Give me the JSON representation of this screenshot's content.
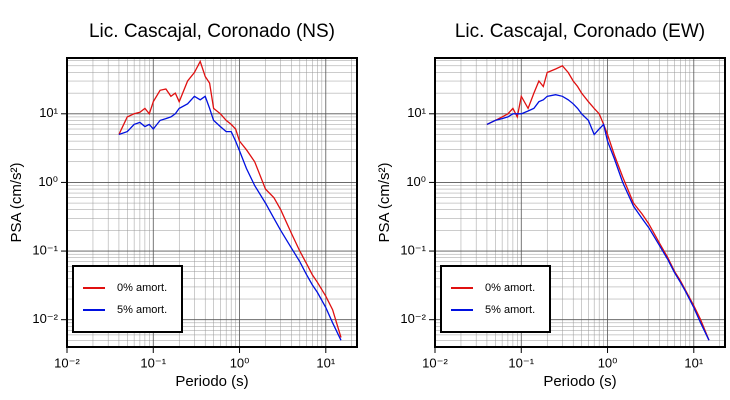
{
  "chart_data": [
    {
      "type": "line",
      "title": "Lic. Cascajal, Coronado (NS)",
      "x_label": "Periodo (s)",
      "y_label": "PSA (cm/s²)",
      "x": [
        0.04,
        0.05,
        0.06,
        0.07,
        0.08,
        0.09,
        0.1,
        0.12,
        0.14,
        0.16,
        0.18,
        0.2,
        0.25,
        0.3,
        0.35,
        0.4,
        0.45,
        0.5,
        0.6,
        0.7,
        0.8,
        0.9,
        1.0,
        1.2,
        1.5,
        2,
        2.5,
        3,
        4,
        5,
        6,
        7,
        8,
        10,
        12,
        15
      ],
      "series": [
        {
          "name": "0% amort.",
          "color": "#e01010",
          "values": [
            5,
            9,
            10,
            10.5,
            12,
            10,
            15,
            22,
            23,
            18,
            20,
            15,
            30,
            40,
            58,
            35,
            28,
            12,
            10,
            8,
            7,
            6,
            4,
            3,
            2,
            0.8,
            0.6,
            0.4,
            0.18,
            0.1,
            0.065,
            0.045,
            0.035,
            0.022,
            0.014,
            0.0055
          ]
        },
        {
          "name": "5% amort.",
          "color": "#0010e0",
          "values": [
            5,
            5.5,
            7,
            7.5,
            6.5,
            7,
            6,
            8,
            8.5,
            9,
            10,
            12,
            14,
            18,
            16,
            18,
            12,
            8,
            6.5,
            5.5,
            5.5,
            4,
            2.9,
            1.6,
            0.9,
            0.5,
            0.3,
            0.2,
            0.11,
            0.07,
            0.045,
            0.032,
            0.025,
            0.015,
            0.009,
            0.005
          ]
        }
      ],
      "xlog": true,
      "ylog": true,
      "grid": true,
      "minor_grid": true,
      "legend": "lower left",
      "xlim": [
        0.01,
        23
      ],
      "ylim": [
        0.004,
        65
      ],
      "xticks": [
        {
          "value": 0.01,
          "label": "10⁻²"
        },
        {
          "value": 0.1,
          "label": "10⁻¹"
        },
        {
          "value": 1,
          "label": "10⁰"
        },
        {
          "value": 10,
          "label": "10¹"
        }
      ],
      "yticks": [
        {
          "value": 0.01,
          "label": "10⁻²"
        },
        {
          "value": 0.1,
          "label": "10⁻¹"
        },
        {
          "value": 1,
          "label": "10⁰"
        },
        {
          "value": 10,
          "label": "10¹"
        }
      ]
    },
    {
      "type": "line",
      "title": "Lic. Cascajal, Coronado (EW)",
      "x_label": "Periodo (s)",
      "y_label": "PSA (cm/s²)",
      "x": [
        0.04,
        0.05,
        0.06,
        0.07,
        0.08,
        0.09,
        0.1,
        0.12,
        0.14,
        0.16,
        0.18,
        0.2,
        0.25,
        0.3,
        0.35,
        0.4,
        0.45,
        0.5,
        0.6,
        0.7,
        0.8,
        0.9,
        1.0,
        1.2,
        1.5,
        2,
        2.5,
        3,
        4,
        5,
        6,
        7,
        8,
        10,
        12,
        15
      ],
      "series": [
        {
          "name": "0% amort.",
          "color": "#e01010",
          "values": [
            7,
            8,
            9,
            10,
            12,
            9,
            18,
            12,
            20,
            30,
            25,
            40,
            45,
            50,
            40,
            30,
            25,
            20,
            15,
            12,
            10,
            7,
            5,
            2.5,
            1.2,
            0.5,
            0.35,
            0.25,
            0.13,
            0.08,
            0.05,
            0.037,
            0.027,
            0.016,
            0.01,
            0.005
          ]
        },
        {
          "name": "5% amort.",
          "color": "#0010e0",
          "values": [
            7,
            8,
            8.5,
            9,
            10,
            10,
            10,
            11,
            12,
            15,
            16,
            18,
            19,
            18,
            16,
            14,
            12,
            10,
            8,
            5,
            6,
            7,
            4,
            2.2,
            1.0,
            0.45,
            0.3,
            0.22,
            0.12,
            0.075,
            0.048,
            0.035,
            0.026,
            0.015,
            0.009,
            0.005
          ]
        }
      ],
      "xlog": true,
      "ylog": true,
      "grid": true,
      "minor_grid": true,
      "legend": "lower left",
      "xlim": [
        0.01,
        23
      ],
      "ylim": [
        0.004,
        65
      ],
      "xticks": [
        {
          "value": 0.01,
          "label": "10⁻²"
        },
        {
          "value": 0.1,
          "label": "10⁻¹"
        },
        {
          "value": 1,
          "label": "10⁰"
        },
        {
          "value": 10,
          "label": "10¹"
        }
      ],
      "yticks": [
        {
          "value": 0.01,
          "label": "10⁻²"
        },
        {
          "value": 0.1,
          "label": "10⁻¹"
        },
        {
          "value": 1,
          "label": "10⁰"
        },
        {
          "value": 10,
          "label": "10¹"
        }
      ]
    }
  ]
}
